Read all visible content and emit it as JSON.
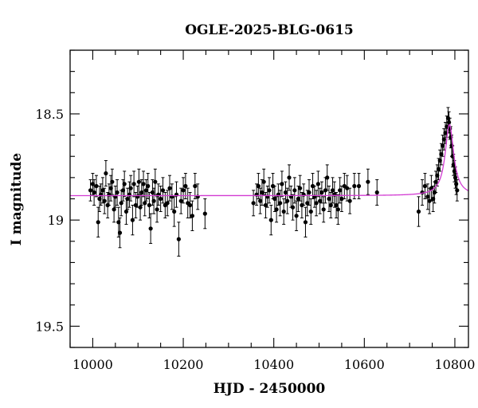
{
  "chart_data": {
    "type": "scatter",
    "title": "OGLE-2025-BLG-0615",
    "xlabel": "HJD - 2450000",
    "ylabel": "I magnitude",
    "xlim": [
      9950,
      10830
    ],
    "ylim": [
      19.6,
      18.2
    ],
    "y_inverted": true,
    "grid": false,
    "x_ticks_major": [
      10000,
      10200,
      10400,
      10600,
      10800
    ],
    "x_tick_labels": [
      "10000",
      "10200",
      "10400",
      "10600",
      "10800"
    ],
    "y_ticks_major": [
      18.5,
      19,
      19.5
    ],
    "y_tick_labels": [
      "18.5",
      "19",
      "19.5"
    ],
    "colors": {
      "points": "#000000",
      "model": "#d23bd2"
    },
    "series": [
      {
        "kind": "points_with_errorbars",
        "points": [
          [
            9995,
            18.86,
            0.05
          ],
          [
            10000,
            18.83,
            0.05
          ],
          [
            10003,
            18.87,
            0.06
          ],
          [
            10008,
            18.84,
            0.05
          ],
          [
            10012,
            19.01,
            0.07
          ],
          [
            10015,
            18.9,
            0.06
          ],
          [
            10018,
            18.88,
            0.05
          ],
          [
            10022,
            18.86,
            0.06
          ],
          [
            10026,
            18.91,
            0.06
          ],
          [
            10029,
            18.78,
            0.06
          ],
          [
            10033,
            18.93,
            0.06
          ],
          [
            10036,
            18.88,
            0.05
          ],
          [
            10040,
            18.85,
            0.06
          ],
          [
            10043,
            18.82,
            0.06
          ],
          [
            10047,
            18.95,
            0.06
          ],
          [
            10050,
            18.89,
            0.05
          ],
          [
            10054,
            18.87,
            0.06
          ],
          [
            10057,
            19.01,
            0.07
          ],
          [
            10060,
            19.06,
            0.07
          ],
          [
            10063,
            18.92,
            0.06
          ],
          [
            10067,
            18.86,
            0.05
          ],
          [
            10070,
            18.83,
            0.06
          ],
          [
            10074,
            18.96,
            0.06
          ],
          [
            10077,
            18.9,
            0.05
          ],
          [
            10081,
            18.88,
            0.06
          ],
          [
            10084,
            18.85,
            0.06
          ],
          [
            10088,
            19.0,
            0.07
          ],
          [
            10091,
            18.83,
            0.06
          ],
          [
            10095,
            18.93,
            0.06
          ],
          [
            10099,
            18.89,
            0.05
          ],
          [
            10102,
            18.82,
            0.06
          ],
          [
            10105,
            18.94,
            0.06
          ],
          [
            10108,
            18.87,
            0.06
          ],
          [
            10112,
            18.83,
            0.06
          ],
          [
            10115,
            18.92,
            0.06
          ],
          [
            10118,
            18.86,
            0.05
          ],
          [
            10122,
            18.84,
            0.06
          ],
          [
            10125,
            18.93,
            0.06
          ],
          [
            10128,
            19.04,
            0.07
          ],
          [
            10132,
            18.87,
            0.06
          ],
          [
            10135,
            18.91,
            0.06
          ],
          [
            10138,
            18.82,
            0.06
          ],
          [
            10142,
            18.95,
            0.06
          ],
          [
            10145,
            18.88,
            0.05
          ],
          [
            10150,
            18.9,
            0.06
          ],
          [
            10155,
            18.86,
            0.06
          ],
          [
            10160,
            18.93,
            0.06
          ],
          [
            10165,
            18.92,
            0.06
          ],
          [
            10170,
            18.85,
            0.06
          ],
          [
            10175,
            18.89,
            0.06
          ],
          [
            10180,
            18.96,
            0.07
          ],
          [
            10185,
            18.88,
            0.06
          ],
          [
            10190,
            19.09,
            0.08
          ],
          [
            10195,
            18.91,
            0.06
          ],
          [
            10200,
            18.86,
            0.06
          ],
          [
            10205,
            18.84,
            0.06
          ],
          [
            10210,
            18.92,
            0.07
          ],
          [
            10215,
            18.93,
            0.06
          ],
          [
            10220,
            18.98,
            0.07
          ],
          [
            10226,
            18.84,
            0.06
          ],
          [
            10232,
            18.89,
            0.06
          ],
          [
            10248,
            18.97,
            0.07
          ],
          [
            10355,
            18.92,
            0.06
          ],
          [
            10362,
            18.88,
            0.05
          ],
          [
            10366,
            18.84,
            0.06
          ],
          [
            10370,
            18.91,
            0.06
          ],
          [
            10374,
            18.87,
            0.06
          ],
          [
            10378,
            18.82,
            0.06
          ],
          [
            10382,
            18.93,
            0.06
          ],
          [
            10386,
            18.89,
            0.05
          ],
          [
            10390,
            18.86,
            0.06
          ],
          [
            10394,
            19.0,
            0.07
          ],
          [
            10398,
            18.84,
            0.06
          ],
          [
            10402,
            18.9,
            0.06
          ],
          [
            10406,
            18.95,
            0.06
          ],
          [
            10410,
            18.88,
            0.05
          ],
          [
            10414,
            18.92,
            0.06
          ],
          [
            10418,
            18.83,
            0.06
          ],
          [
            10422,
            18.96,
            0.06
          ],
          [
            10426,
            18.87,
            0.05
          ],
          [
            10430,
            18.91,
            0.06
          ],
          [
            10434,
            18.8,
            0.06
          ],
          [
            10438,
            18.89,
            0.05
          ],
          [
            10442,
            18.94,
            0.06
          ],
          [
            10446,
            18.86,
            0.06
          ],
          [
            10450,
            18.98,
            0.07
          ],
          [
            10454,
            18.9,
            0.06
          ],
          [
            10458,
            18.85,
            0.06
          ],
          [
            10462,
            18.93,
            0.06
          ],
          [
            10466,
            18.88,
            0.05
          ],
          [
            10470,
            19.01,
            0.07
          ],
          [
            10474,
            18.92,
            0.06
          ],
          [
            10478,
            18.87,
            0.06
          ],
          [
            10482,
            18.96,
            0.06
          ],
          [
            10486,
            18.84,
            0.06
          ],
          [
            10490,
            18.89,
            0.05
          ],
          [
            10494,
            18.92,
            0.06
          ],
          [
            10498,
            18.83,
            0.06
          ],
          [
            10502,
            18.91,
            0.06
          ],
          [
            10506,
            18.87,
            0.05
          ],
          [
            10510,
            18.95,
            0.06
          ],
          [
            10514,
            18.86,
            0.06
          ],
          [
            10518,
            18.8,
            0.06
          ],
          [
            10522,
            18.9,
            0.06
          ],
          [
            10526,
            18.93,
            0.06
          ],
          [
            10530,
            18.86,
            0.06
          ],
          [
            10534,
            18.88,
            0.06
          ],
          [
            10538,
            18.93,
            0.06
          ],
          [
            10542,
            18.95,
            0.07
          ],
          [
            10546,
            18.86,
            0.06
          ],
          [
            10550,
            18.9,
            0.06
          ],
          [
            10556,
            18.84,
            0.06
          ],
          [
            10562,
            18.85,
            0.06
          ],
          [
            10568,
            18.91,
            0.06
          ],
          [
            10578,
            18.84,
            0.06
          ],
          [
            10588,
            18.84,
            0.06
          ],
          [
            10608,
            18.82,
            0.06
          ],
          [
            10628,
            18.87,
            0.06
          ],
          [
            10720,
            18.96,
            0.07
          ],
          [
            10728,
            18.87,
            0.06
          ],
          [
            10734,
            18.84,
            0.06
          ],
          [
            10740,
            18.89,
            0.06
          ],
          [
            10744,
            18.91,
            0.06
          ],
          [
            10748,
            18.85,
            0.06
          ],
          [
            10752,
            18.9,
            0.06
          ],
          [
            10755,
            18.87,
            0.05
          ],
          [
            10758,
            18.82,
            0.05
          ],
          [
            10761,
            18.79,
            0.05
          ],
          [
            10764,
            18.76,
            0.05
          ],
          [
            10767,
            18.72,
            0.05
          ],
          [
            10770,
            18.69,
            0.05
          ],
          [
            10773,
            18.65,
            0.05
          ],
          [
            10776,
            18.62,
            0.05
          ],
          [
            10779,
            18.59,
            0.05
          ],
          [
            10782,
            18.56,
            0.05
          ],
          [
            10785,
            18.52,
            0.05
          ],
          [
            10787,
            18.54,
            0.05
          ],
          [
            10789,
            18.57,
            0.05
          ],
          [
            10791,
            18.61,
            0.05
          ],
          [
            10793,
            18.65,
            0.05
          ],
          [
            10795,
            18.7,
            0.05
          ],
          [
            10797,
            18.74,
            0.05
          ],
          [
            10799,
            18.77,
            0.05
          ],
          [
            10801,
            18.8,
            0.05
          ],
          [
            10803,
            18.83,
            0.05
          ],
          [
            10805,
            18.86,
            0.05
          ]
        ]
      },
      {
        "kind": "model_curve",
        "baseline": 18.885,
        "peak_mag": 18.55,
        "t0": 10788,
        "tE": 14
      }
    ]
  }
}
